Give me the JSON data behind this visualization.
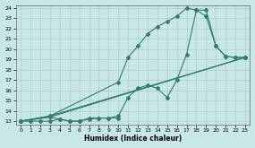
{
  "xlabel": "Humidex (Indice chaleur)",
  "bg_color": "#c8e8e8",
  "grid_color": "#b0cccc",
  "line_color": "#2e7d6e",
  "xlim_min": -0.5,
  "xlim_max": 23.5,
  "ylim_min": 12.7,
  "ylim_max": 24.3,
  "xticks": [
    0,
    1,
    2,
    3,
    4,
    5,
    6,
    7,
    8,
    9,
    10,
    11,
    12,
    13,
    14,
    15,
    16,
    17,
    18,
    19,
    20,
    21,
    22,
    23
  ],
  "yticks": [
    13,
    14,
    15,
    16,
    17,
    18,
    19,
    20,
    21,
    22,
    23,
    24
  ],
  "line_zigzag": {
    "x": [
      0,
      1,
      2,
      3,
      4,
      5,
      6,
      7,
      8,
      9,
      10
    ],
    "y": [
      13,
      13,
      13,
      13,
      13.2,
      13,
      13,
      13.3,
      13.3,
      13.3,
      13.3
    ]
  },
  "line_peak_high": {
    "x": [
      0,
      3,
      10,
      11,
      12,
      13,
      14,
      15,
      16,
      17,
      18,
      19,
      20,
      21,
      22,
      23
    ],
    "y": [
      13,
      13.5,
      16.8,
      19.2,
      20.3,
      21.5,
      22.2,
      22.7,
      23.2,
      24.0,
      23.8,
      23.2,
      20.3,
      19.3,
      19.2,
      19.2
    ]
  },
  "line_peak_medium": {
    "x": [
      0,
      3,
      4,
      5,
      6,
      7,
      8,
      9,
      10,
      11,
      12,
      13,
      14,
      15,
      16,
      17,
      18,
      19,
      20,
      21,
      22,
      23
    ],
    "y": [
      13,
      13.4,
      13.2,
      13,
      13,
      13.2,
      13.3,
      13.3,
      13.5,
      15.3,
      16.2,
      16.5,
      16.2,
      15.3,
      17.0,
      19.5,
      23.8,
      23.8,
      20.3,
      19.3,
      19.2,
      19.2
    ]
  },
  "line_straight_low": {
    "x": [
      0,
      3,
      23
    ],
    "y": [
      13,
      13.4,
      19.2
    ]
  },
  "line_straight_high": {
    "x": [
      0,
      3,
      23
    ],
    "y": [
      13,
      13.5,
      19.2
    ]
  }
}
